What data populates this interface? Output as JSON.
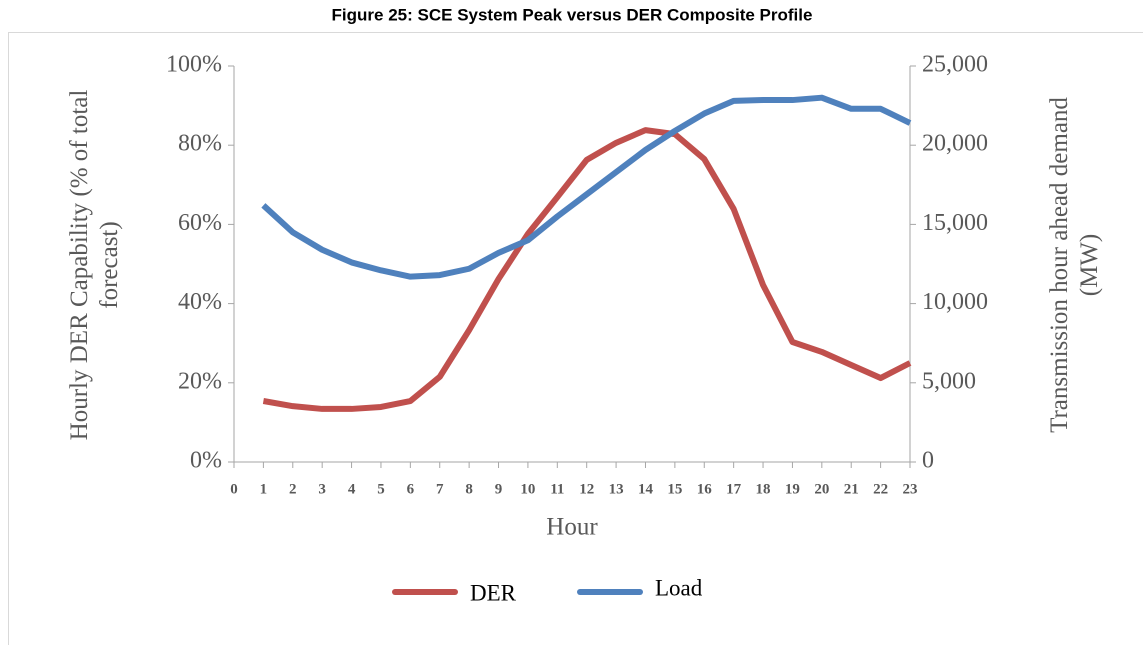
{
  "chart_data": {
    "type": "line",
    "title": "Figure 25: SCE System Peak versus DER Composite Profile",
    "x_label": "Hour",
    "y_label": "Hourly DER Capability (% of total forecast)",
    "y2_label": "Transmission hour ahead demand (MW)",
    "x": [
      0,
      1,
      2,
      3,
      4,
      5,
      6,
      7,
      8,
      9,
      10,
      11,
      12,
      13,
      14,
      15,
      16,
      17,
      18,
      19,
      20,
      21,
      22,
      23
    ],
    "xlim": [
      0,
      23
    ],
    "xticks": [
      0,
      1,
      2,
      3,
      4,
      5,
      6,
      7,
      8,
      9,
      10,
      11,
      12,
      13,
      14,
      15,
      16,
      17,
      18,
      19,
      20,
      21,
      22,
      23
    ],
    "ylim": [
      0,
      100
    ],
    "yticks": [
      {
        "value": 0,
        "label": "0%"
      },
      {
        "value": 20,
        "label": "20%"
      },
      {
        "value": 40,
        "label": "40%"
      },
      {
        "value": 60,
        "label": "60%"
      },
      {
        "value": 80,
        "label": "80%"
      },
      {
        "value": 100,
        "label": "100%"
      }
    ],
    "y2lim": [
      0,
      25000
    ],
    "y2ticks": [
      0,
      {
        "value": 5000,
        "label": "5,000"
      },
      {
        "value": 10000,
        "label": "10,000"
      },
      {
        "value": 15000,
        "label": "15,000"
      },
      {
        "value": 20000,
        "label": "20,000"
      },
      {
        "value": 25000,
        "label": "25,000"
      }
    ],
    "grid": false,
    "legend": "bottom",
    "series": [
      {
        "name": "DER",
        "color": "#c0504d",
        "values": [
          null,
          15.4,
          14.1,
          13.4,
          13.4,
          13.9,
          15.4,
          21.5,
          33.3,
          46.2,
          57.6,
          66.9,
          76.3,
          80.6,
          83.8,
          82.8,
          76.5,
          63.9,
          44.7,
          30.3,
          27.8,
          24.5,
          21.2,
          25.0
        ]
      },
      {
        "name": "Load",
        "color": "#4f81bd",
        "axis": "y2",
        "values": [
          null,
          16200,
          14500,
          13400,
          12600,
          12100,
          11700,
          11800,
          12200,
          13200,
          14000,
          15500,
          16900,
          18300,
          19700,
          20900,
          22000,
          22800,
          22850,
          22850,
          23000,
          22300,
          22300,
          21400
        ]
      }
    ]
  }
}
